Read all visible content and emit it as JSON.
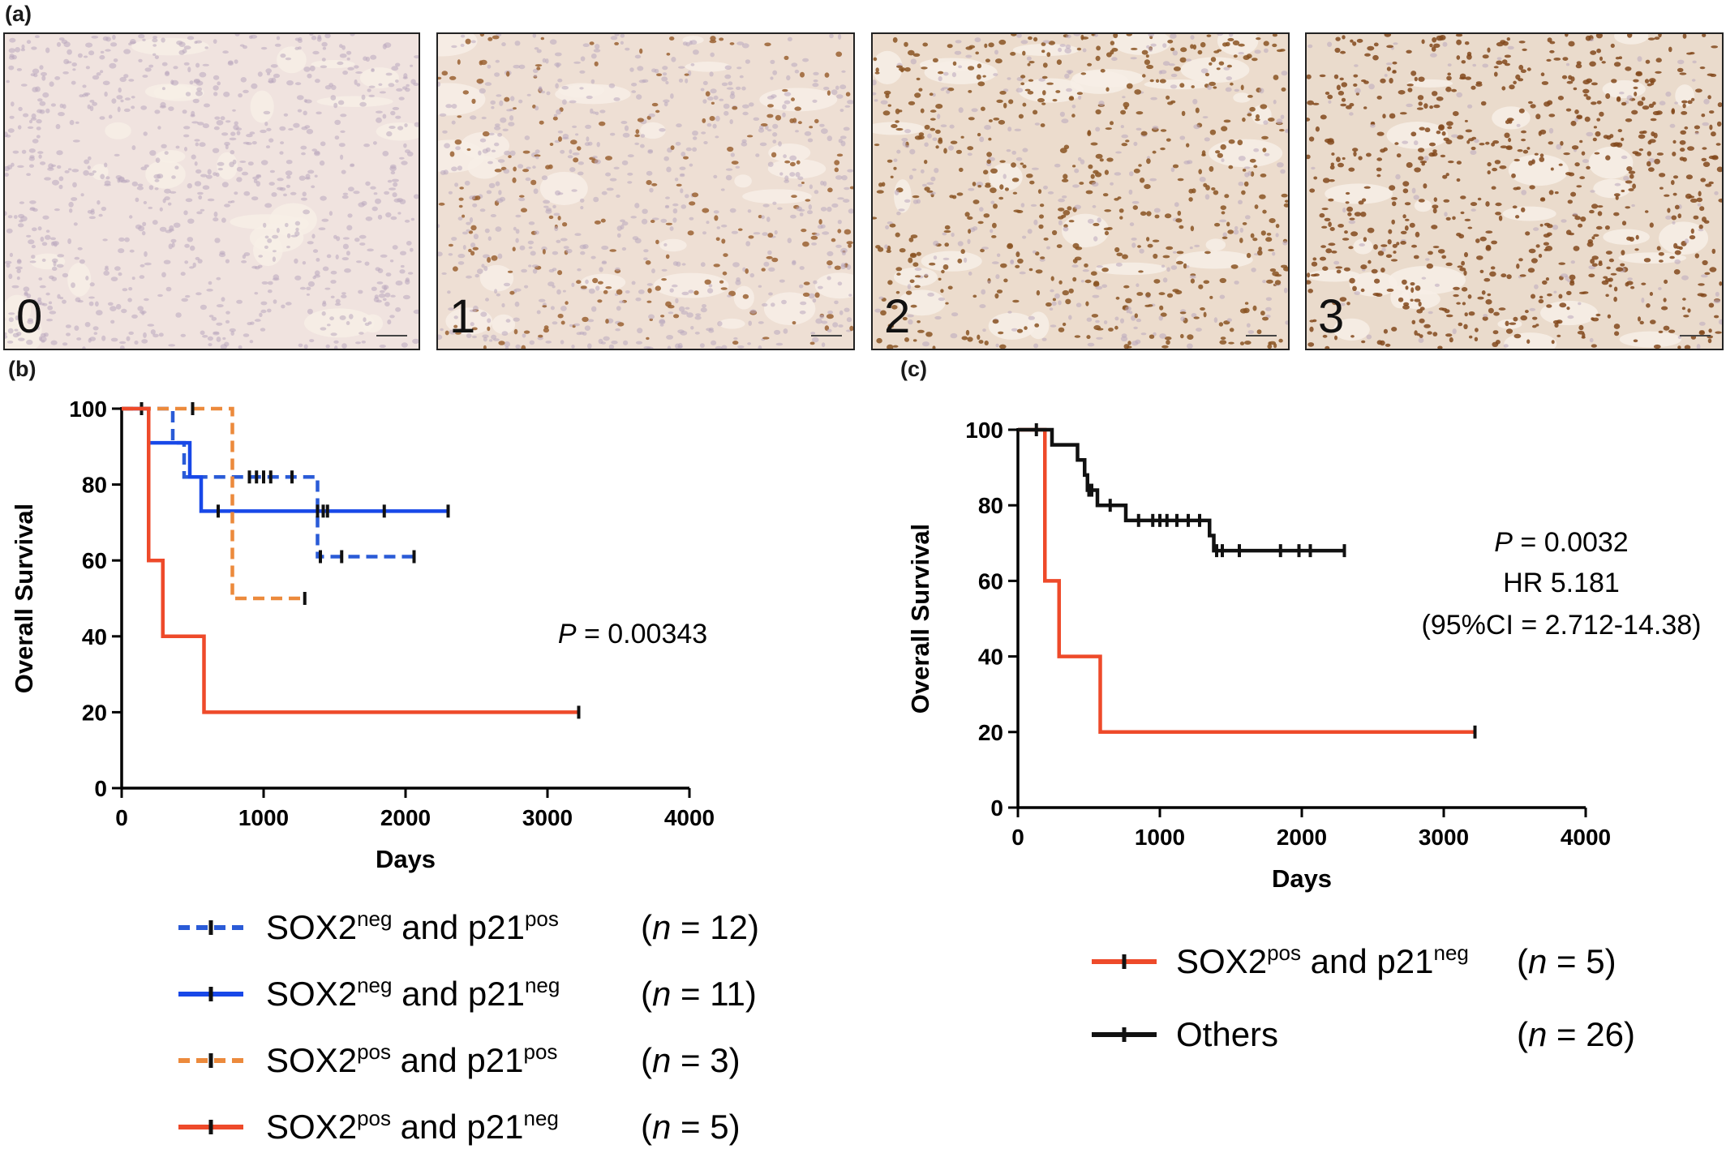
{
  "panel_labels": {
    "a": "(a)",
    "b": "(b)",
    "c": "(c)"
  },
  "micrographs": [
    {
      "label": "0",
      "stain": "#f0e3df",
      "dot": "#c6b2c4",
      "density": 0.0
    },
    {
      "label": "1",
      "stain": "#eedfd4",
      "dot": "#9a6231",
      "density": 0.25
    },
    {
      "label": "2",
      "stain": "#ecdccd",
      "dot": "#8a5322",
      "density": 0.6
    },
    {
      "label": "3",
      "stain": "#eadbcc",
      "dot": "#82491c",
      "density": 0.85
    }
  ],
  "chart_data": [
    {
      "type": "line",
      "panel": "b",
      "xlabel": "Days",
      "ylabel": "Overall Survival",
      "xlim": [
        0,
        4000
      ],
      "ylim": [
        0,
        100
      ],
      "xticks": [
        "0",
        "1000",
        "2000",
        "3000",
        "4000"
      ],
      "yticks": [
        "0",
        "20",
        "40",
        "60",
        "80",
        "100"
      ],
      "annotations": [
        {
          "italic": "P",
          "text": " = 0.00343"
        }
      ],
      "series": [
        {
          "name": "SOX2neg and p21pos",
          "n": "(n = 12)",
          "color": "#2a5bd7",
          "dash": true,
          "steps": [
            [
              0,
              100
            ],
            [
              360,
              91
            ],
            [
              440,
              82
            ],
            [
              1380,
              61
            ],
            [
              2060,
              61
            ]
          ],
          "censors": [
            [
              140,
              100
            ],
            [
              900,
              82
            ],
            [
              950,
              82
            ],
            [
              1000,
              82
            ],
            [
              1050,
              82
            ],
            [
              1200,
              82
            ],
            [
              1400,
              61
            ],
            [
              1550,
              61
            ],
            [
              2060,
              61
            ]
          ]
        },
        {
          "name": "SOX2neg and p21neg",
          "n": "(n = 11)",
          "color": "#1848e8",
          "dash": false,
          "steps": [
            [
              0,
              100
            ],
            [
              190,
              91
            ],
            [
              480,
              82
            ],
            [
              560,
              73
            ],
            [
              2310,
              73
            ]
          ],
          "censors": [
            [
              680,
              73
            ],
            [
              1380,
              73
            ],
            [
              1420,
              73
            ],
            [
              1450,
              73
            ],
            [
              1850,
              73
            ],
            [
              2300,
              73
            ]
          ]
        },
        {
          "name": "SOX2pos and p21pos",
          "n": "(n = 3)",
          "color": "#ec8a3c",
          "dash": true,
          "steps": [
            [
              0,
              100
            ],
            [
              780,
              50
            ],
            [
              1290,
              50
            ]
          ],
          "censors": [
            [
              500,
              100
            ],
            [
              1290,
              50
            ]
          ]
        },
        {
          "name": "SOX2pos and p21neg",
          "n": "(n = 5)",
          "color": "#ee4a2a",
          "dash": false,
          "steps": [
            [
              0,
              100
            ],
            [
              190,
              60
            ],
            [
              290,
              40
            ],
            [
              580,
              20
            ],
            [
              3220,
              20
            ]
          ],
          "censors": [
            [
              3220,
              20
            ]
          ]
        }
      ],
      "legend": [
        {
          "main": "SOX2",
          "sup1": "neg",
          "mid": " and p21",
          "sup2": "pos",
          "n_pre": "(",
          "n_it": "n",
          "n_post": " = 12)"
        },
        {
          "main": "SOX2",
          "sup1": "neg",
          "mid": " and p21",
          "sup2": "neg",
          "n_pre": "(",
          "n_it": "n",
          "n_post": " = 11)"
        },
        {
          "main": "SOX2",
          "sup1": "pos",
          "mid": " and p21",
          "sup2": "pos",
          "n_pre": "(",
          "n_it": "n",
          "n_post": " = 3)"
        },
        {
          "main": "SOX2",
          "sup1": "pos",
          "mid": " and p21",
          "sup2": "neg",
          "n_pre": "(",
          "n_it": "n",
          "n_post": " = 5)"
        }
      ]
    },
    {
      "type": "line",
      "panel": "c",
      "xlabel": "Days",
      "ylabel": "Overall Survival",
      "xlim": [
        0,
        4000
      ],
      "ylim": [
        0,
        100
      ],
      "xticks": [
        "0",
        "1000",
        "2000",
        "3000",
        "4000"
      ],
      "yticks": [
        "0",
        "20",
        "40",
        "60",
        "80",
        "100"
      ],
      "annotations": [
        {
          "italic": "P",
          "text": " = 0.0032"
        },
        {
          "italic": "",
          "text": "HR 5.181"
        },
        {
          "italic": "",
          "text": "(95%CI = 2.712-14.38)"
        }
      ],
      "series": [
        {
          "name": "SOX2pos and p21neg",
          "n": "(n = 5)",
          "color": "#ee4a2a",
          "dash": false,
          "steps": [
            [
              0,
              100
            ],
            [
              190,
              60
            ],
            [
              290,
              40
            ],
            [
              580,
              20
            ],
            [
              3220,
              20
            ]
          ],
          "censors": [
            [
              3220,
              20
            ]
          ]
        },
        {
          "name": "Others",
          "n": "(n = 26)",
          "color": "#111111",
          "dash": false,
          "steps": [
            [
              0,
              100
            ],
            [
              240,
              96
            ],
            [
              420,
              92
            ],
            [
              470,
              88
            ],
            [
              490,
              84
            ],
            [
              560,
              80
            ],
            [
              760,
              76
            ],
            [
              1350,
              72
            ],
            [
              1380,
              68
            ],
            [
              2310,
              68
            ]
          ],
          "censors": [
            [
              130,
              100
            ],
            [
              500,
              84
            ],
            [
              520,
              84
            ],
            [
              650,
              80
            ],
            [
              850,
              76
            ],
            [
              950,
              76
            ],
            [
              1000,
              76
            ],
            [
              1050,
              76
            ],
            [
              1120,
              76
            ],
            [
              1200,
              76
            ],
            [
              1280,
              76
            ],
            [
              1400,
              68
            ],
            [
              1440,
              68
            ],
            [
              1560,
              68
            ],
            [
              1850,
              68
            ],
            [
              1980,
              68
            ],
            [
              2060,
              68
            ],
            [
              2300,
              68
            ]
          ]
        }
      ],
      "legend": [
        {
          "main": "SOX2",
          "sup1": "pos",
          "mid": " and p21",
          "sup2": "neg",
          "n_pre": "(",
          "n_it": "n",
          "n_post": " = 5)"
        },
        {
          "main": "Others",
          "sup1": "",
          "mid": "",
          "sup2": "",
          "n_pre": "(",
          "n_it": "n",
          "n_post": " = 26)"
        }
      ]
    }
  ]
}
